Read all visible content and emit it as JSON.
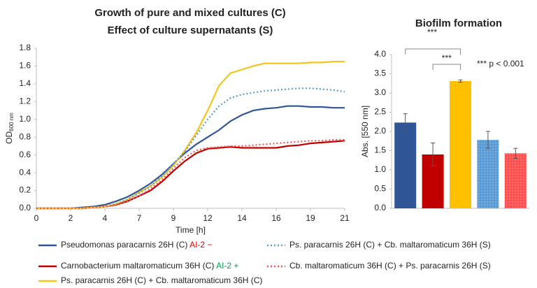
{
  "chart_data": [
    {
      "type": "line",
      "title": [
        "Growth of pure and mixed cultures (C)",
        "Effect of culture supernatants (S)"
      ],
      "xlabel": "Time [h]",
      "ylabel": "OD",
      "ylabel_sub": "600 nm",
      "x": [
        "0",
        null,
        null,
        "2",
        null,
        null,
        "4",
        null,
        null,
        "7",
        null,
        null,
        "9",
        null,
        null,
        "12",
        null,
        null,
        "14",
        null,
        null,
        "16",
        null,
        null,
        "19",
        null,
        null,
        "21"
      ],
      "ylim": [
        0,
        1.8
      ],
      "yticks": [
        {
          "value": 0,
          "label": "0.0"
        },
        {
          "value": 0.2,
          "label": "0.2"
        },
        {
          "value": 0.4,
          "label": "0.4"
        },
        {
          "value": 0.6,
          "label": "0.6"
        },
        {
          "value": 0.8,
          "label": "0.8"
        },
        {
          "value": 1,
          "label": "1.0"
        },
        {
          "value": 1.2,
          "label": "1.2"
        },
        {
          "value": 1.4,
          "label": "1.4"
        },
        {
          "value": 1.6,
          "label": "1.6"
        },
        {
          "value": 1.8,
          "label": "1.8"
        }
      ],
      "series": [
        {
          "name": "Pseudomonas paracarnis 26H (C)",
          "suffix": "AI-2 −",
          "suffix_color": "#e00000",
          "color": "#2f5597",
          "style": "solid",
          "values": [
            0,
            0,
            0,
            0,
            0.01,
            0.02,
            0.04,
            0.08,
            0.13,
            0.2,
            0.28,
            0.38,
            0.5,
            0.62,
            0.72,
            0.8,
            0.88,
            0.98,
            1.05,
            1.1,
            1.12,
            1.13,
            1.15,
            1.15,
            1.14,
            1.14,
            1.13,
            1.13
          ]
        },
        {
          "name": "Carnobacterium maltaromaticum 36H (C)",
          "suffix": "AI-2 +",
          "suffix_color": "#00a050",
          "color": "#c00000",
          "style": "solid",
          "values": [
            0,
            0,
            0,
            0,
            0,
            0.01,
            0.02,
            0.04,
            0.08,
            0.14,
            0.2,
            0.3,
            0.42,
            0.53,
            0.62,
            0.67,
            0.68,
            0.69,
            0.68,
            0.68,
            0.68,
            0.68,
            0.7,
            0.71,
            0.73,
            0.74,
            0.75,
            0.76
          ]
        },
        {
          "name": "Ps. paracarnis 26H (C) + Cb. maltaromaticum 36H (C)",
          "color": "#f5c518",
          "style": "solid",
          "values": [
            0,
            0,
            0,
            0,
            0,
            0.01,
            0.02,
            0.05,
            0.1,
            0.18,
            0.25,
            0.35,
            0.48,
            0.65,
            0.85,
            1.1,
            1.38,
            1.52,
            1.56,
            1.6,
            1.63,
            1.63,
            1.63,
            1.63,
            1.64,
            1.64,
            1.65,
            1.65
          ]
        },
        {
          "name": "Ps. paracarnis 26H (C) + Cb. maltaromaticum 36H (S)",
          "color": "#5b9bd5",
          "style": "dotted",
          "values": [
            0,
            0,
            0,
            0,
            0,
            0.01,
            0.02,
            0.05,
            0.1,
            0.17,
            0.25,
            0.36,
            0.5,
            0.64,
            0.82,
            1.0,
            1.15,
            1.24,
            1.28,
            1.3,
            1.32,
            1.33,
            1.34,
            1.35,
            1.35,
            1.34,
            1.33,
            1.31
          ]
        },
        {
          "name": "Cb. maltaromaticum 36H (C) + Ps. paracarnis 26H (S)",
          "color": "#ff5050",
          "style": "dotted",
          "values": [
            0,
            0,
            0,
            0,
            0,
            0.01,
            0.02,
            0.04,
            0.08,
            0.14,
            0.22,
            0.32,
            0.45,
            0.57,
            0.65,
            0.68,
            0.69,
            0.7,
            0.7,
            0.71,
            0.72,
            0.73,
            0.74,
            0.75,
            0.76,
            0.76,
            0.77,
            0.77
          ]
        }
      ]
    },
    {
      "type": "bar",
      "title": "Biofilm formation",
      "ylabel": "Abs. [550 nm]",
      "categories": [
        null,
        null,
        null,
        null,
        null
      ],
      "values": [
        2.23,
        1.4,
        3.31,
        1.78,
        1.43
      ],
      "errors": [
        0.23,
        0.3,
        0.03,
        0.22,
        0.13
      ],
      "colors": [
        "#2f5597",
        "#c00000",
        "#ffc000",
        "#5b9bd5",
        "#ff5050"
      ],
      "patterned": [
        false,
        false,
        false,
        true,
        true
      ],
      "ylim": [
        0,
        4
      ],
      "yticks": [
        {
          "value": 0,
          "label": "0.0"
        },
        {
          "value": 0.5,
          "label": "0.5"
        },
        {
          "value": 1,
          "label": "1.0"
        },
        {
          "value": 1.5,
          "label": "1.5"
        },
        {
          "value": 2,
          "label": "2.0"
        },
        {
          "value": 2.5,
          "label": "2.5"
        },
        {
          "value": 3,
          "label": "3.0"
        },
        {
          "value": 3.5,
          "label": "3.5"
        },
        {
          "value": 4,
          "label": "4.0"
        }
      ],
      "significance": [
        {
          "from": 0,
          "to": 2,
          "label": "***"
        },
        {
          "from": 1,
          "to": 2,
          "label": "***"
        }
      ],
      "annotation": "*** p < 0.001"
    }
  ]
}
